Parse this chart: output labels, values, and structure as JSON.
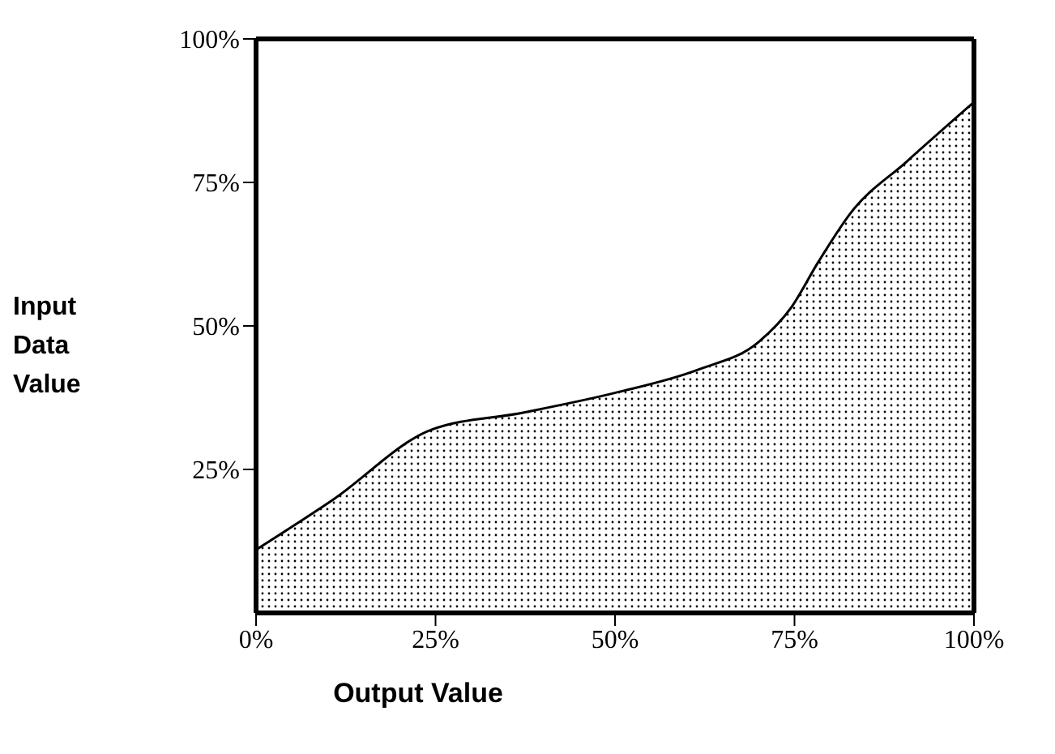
{
  "chart_data": {
    "type": "area",
    "xlabel": "Output Value",
    "ylabel": "Input Data Value",
    "x": [
      0,
      10.7,
      24.4,
      37.2,
      50.2,
      61.6,
      70,
      74.6,
      78.3,
      82.9,
      90.6,
      100
    ],
    "series": [
      {
        "color": "#000000",
        "values": [
          11,
          19.7,
          31.9,
          34.9,
          38.4,
          42.4,
          47.2,
          53.3,
          61.1,
          69.8,
          78.6,
          89
        ]
      }
    ],
    "xlim": [
      0,
      100
    ],
    "ylim": [
      0,
      100
    ],
    "xticks": [
      {
        "value": 0,
        "label": "0%"
      },
      {
        "value": 25,
        "label": "25%"
      },
      {
        "value": 50,
        "label": "50%"
      },
      {
        "value": 75,
        "label": "75%"
      },
      {
        "value": 100,
        "label": "100%"
      }
    ],
    "yticks": [
      {
        "value": 25,
        "label": "25%"
      },
      {
        "value": 50,
        "label": "50%"
      },
      {
        "value": 75,
        "label": "75%"
      },
      {
        "value": 100,
        "label": "100%"
      }
    ],
    "grid": false
  }
}
